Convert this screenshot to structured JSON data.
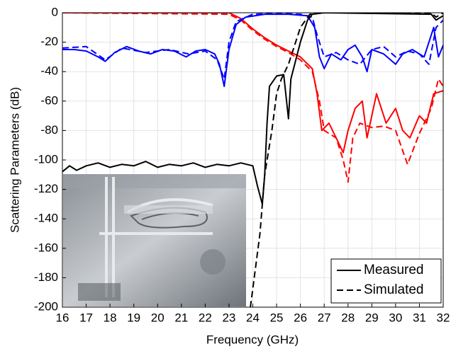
{
  "chart_data": {
    "type": "line",
    "xlabel": "Frequency (GHz)",
    "ylabel": "Scattering Parameters (dB)",
    "xlim": [
      16,
      32
    ],
    "xticks": [
      16,
      17,
      18,
      19,
      20,
      21,
      22,
      23,
      24,
      25,
      26,
      27,
      28,
      29,
      30,
      31,
      32
    ],
    "ylim": [
      -200,
      0
    ],
    "yticks": [
      -200,
      -180,
      -160,
      -140,
      -120,
      -100,
      -80,
      -60,
      -40,
      -20,
      0
    ],
    "grid": true,
    "legend": {
      "position": "lower right",
      "entries": [
        {
          "label": "Measured",
          "style": "solid",
          "color": "#000000"
        },
        {
          "label": "Simulated",
          "style": "dashed",
          "color": "#000000"
        }
      ]
    },
    "series": [
      {
        "color": "#ff0000",
        "style": "solid",
        "x": [
          16,
          23,
          23.5,
          24,
          24.5,
          25,
          25.5,
          26,
          26.5,
          26.7,
          26.9,
          27.2,
          27.5,
          27.8,
          28,
          28.3,
          28.6,
          28.8,
          29.2,
          29.6,
          30,
          30.3,
          30.6,
          31,
          31.3,
          31.6,
          32
        ],
        "values": [
          0,
          0,
          -4,
          -11,
          -17,
          -22,
          -26,
          -30,
          -38,
          -55,
          -80,
          -75,
          -85,
          -95,
          -80,
          -65,
          -60,
          -85,
          -55,
          -75,
          -65,
          -80,
          -85,
          -70,
          -75,
          -55,
          -53
        ]
      },
      {
        "color": "#ff0000",
        "style": "dashed",
        "x": [
          16,
          23,
          23.5,
          24,
          24.5,
          25,
          25.5,
          26,
          26.5,
          26.8,
          27,
          27.5,
          27.8,
          28,
          28.2,
          28.5,
          29,
          29.5,
          30,
          30.5,
          31,
          31.5,
          31.8,
          32
        ],
        "values": [
          0,
          -1,
          -5,
          -12,
          -18,
          -23,
          -27,
          -32,
          -40,
          -60,
          -80,
          -85,
          -100,
          -115,
          -85,
          -75,
          -78,
          -77,
          -80,
          -103,
          -82,
          -65,
          -45,
          -50
        ]
      },
      {
        "color": "#0000ff",
        "style": "solid",
        "x": [
          16,
          16.5,
          17,
          17.5,
          17.8,
          18.2,
          18.7,
          19.2,
          19.7,
          20.2,
          20.7,
          21.2,
          21.6,
          22,
          22.4,
          22.6,
          22.8,
          23,
          23.3,
          23.7,
          24.5,
          25.5,
          26.3,
          26.6,
          26.8,
          27,
          27.3,
          27.7,
          28,
          28.3,
          28.6,
          28.8,
          29,
          29.5,
          30,
          30.3,
          30.7,
          31.2,
          31.6,
          31.8,
          32
        ],
        "values": [
          -25,
          -25,
          -26,
          -30,
          -33,
          -27,
          -23,
          -26,
          -28,
          -25,
          -26,
          -30,
          -26,
          -25,
          -28,
          -35,
          -50,
          -25,
          -8,
          -3,
          -1,
          -1,
          -2,
          -10,
          -30,
          -38,
          -28,
          -32,
          -25,
          -22,
          -30,
          -40,
          -25,
          -28,
          -35,
          -28,
          -25,
          -30,
          -10,
          -30,
          -22
        ]
      },
      {
        "color": "#0000ff",
        "style": "dashed",
        "x": [
          16,
          17,
          17.8,
          18.5,
          19.5,
          20.5,
          21.3,
          22,
          22.5,
          22.8,
          23,
          23.3,
          24,
          25,
          26,
          26.5,
          26.7,
          27,
          27.5,
          28,
          28.5,
          29,
          29.5,
          30,
          30.5,
          31,
          31.4,
          31.7,
          32
        ],
        "values": [
          -24,
          -23,
          -32,
          -24,
          -27,
          -25,
          -28,
          -26,
          -32,
          -45,
          -20,
          -6,
          -1,
          -0.5,
          -1,
          -3,
          -15,
          -30,
          -27,
          -32,
          -35,
          -25,
          -23,
          -30,
          -26,
          -28,
          -35,
          -10,
          -5
        ]
      },
      {
        "color": "#000000",
        "style": "solid",
        "x": [
          16,
          16.3,
          16.6,
          17,
          17.5,
          18,
          18.5,
          19,
          19.5,
          20,
          20.5,
          21,
          21.5,
          22,
          22.5,
          23,
          23.5,
          24,
          24.2,
          24.4,
          24.5,
          24.6,
          24.7,
          25,
          25.3,
          25.5,
          25.6,
          26,
          26.3,
          26.5,
          27,
          31.5,
          31.7,
          32
        ],
        "values": [
          -108,
          -104,
          -107,
          -104,
          -102,
          -105,
          -103,
          -104,
          -101,
          -105,
          -103,
          -104,
          -102,
          -105,
          -103,
          -104,
          -102,
          -104,
          -118,
          -130,
          -110,
          -75,
          -50,
          -43,
          -42,
          -72,
          -45,
          -20,
          -5,
          -1,
          0,
          -1,
          -5,
          -2
        ]
      },
      {
        "color": "#000000",
        "style": "dashed",
        "x": [
          23.9,
          24.3,
          24.5,
          24.8,
          25,
          25.2,
          25.5,
          26,
          26.4,
          27,
          31.5,
          31.7,
          32
        ],
        "values": [
          -200,
          -150,
          -110,
          -80,
          -55,
          -45,
          -35,
          -10,
          -1,
          0,
          0,
          -3,
          0
        ]
      }
    ]
  }
}
